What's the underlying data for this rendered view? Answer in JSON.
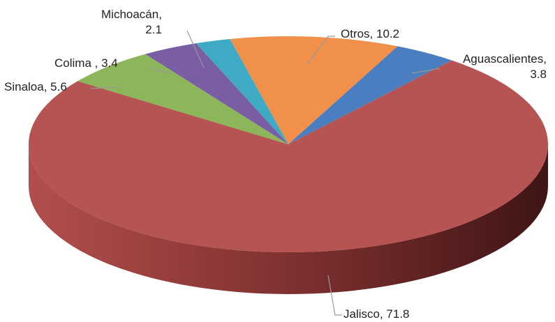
{
  "chart_data": {
    "type": "pie",
    "categories": [
      "Otros",
      "Aguascalientes",
      "Jalisco",
      "Sinaloa",
      "Colima",
      "Michoacán"
    ],
    "values": [
      10.2,
      3.8,
      71.8,
      5.6,
      3.4,
      2.1
    ],
    "value_labels": [
      "Otros, 10.2",
      "Aguascalientes,\n3.8",
      "Jalisco, 71.8",
      "Sinaloa, 5.6",
      "Colima , 3.4",
      "Michoacán,\n2.1"
    ],
    "colors": [
      "#f0904a",
      "#4a7ec0",
      "#b55452",
      "#8db55a",
      "#7a5ea3",
      "#3eaac3"
    ]
  }
}
